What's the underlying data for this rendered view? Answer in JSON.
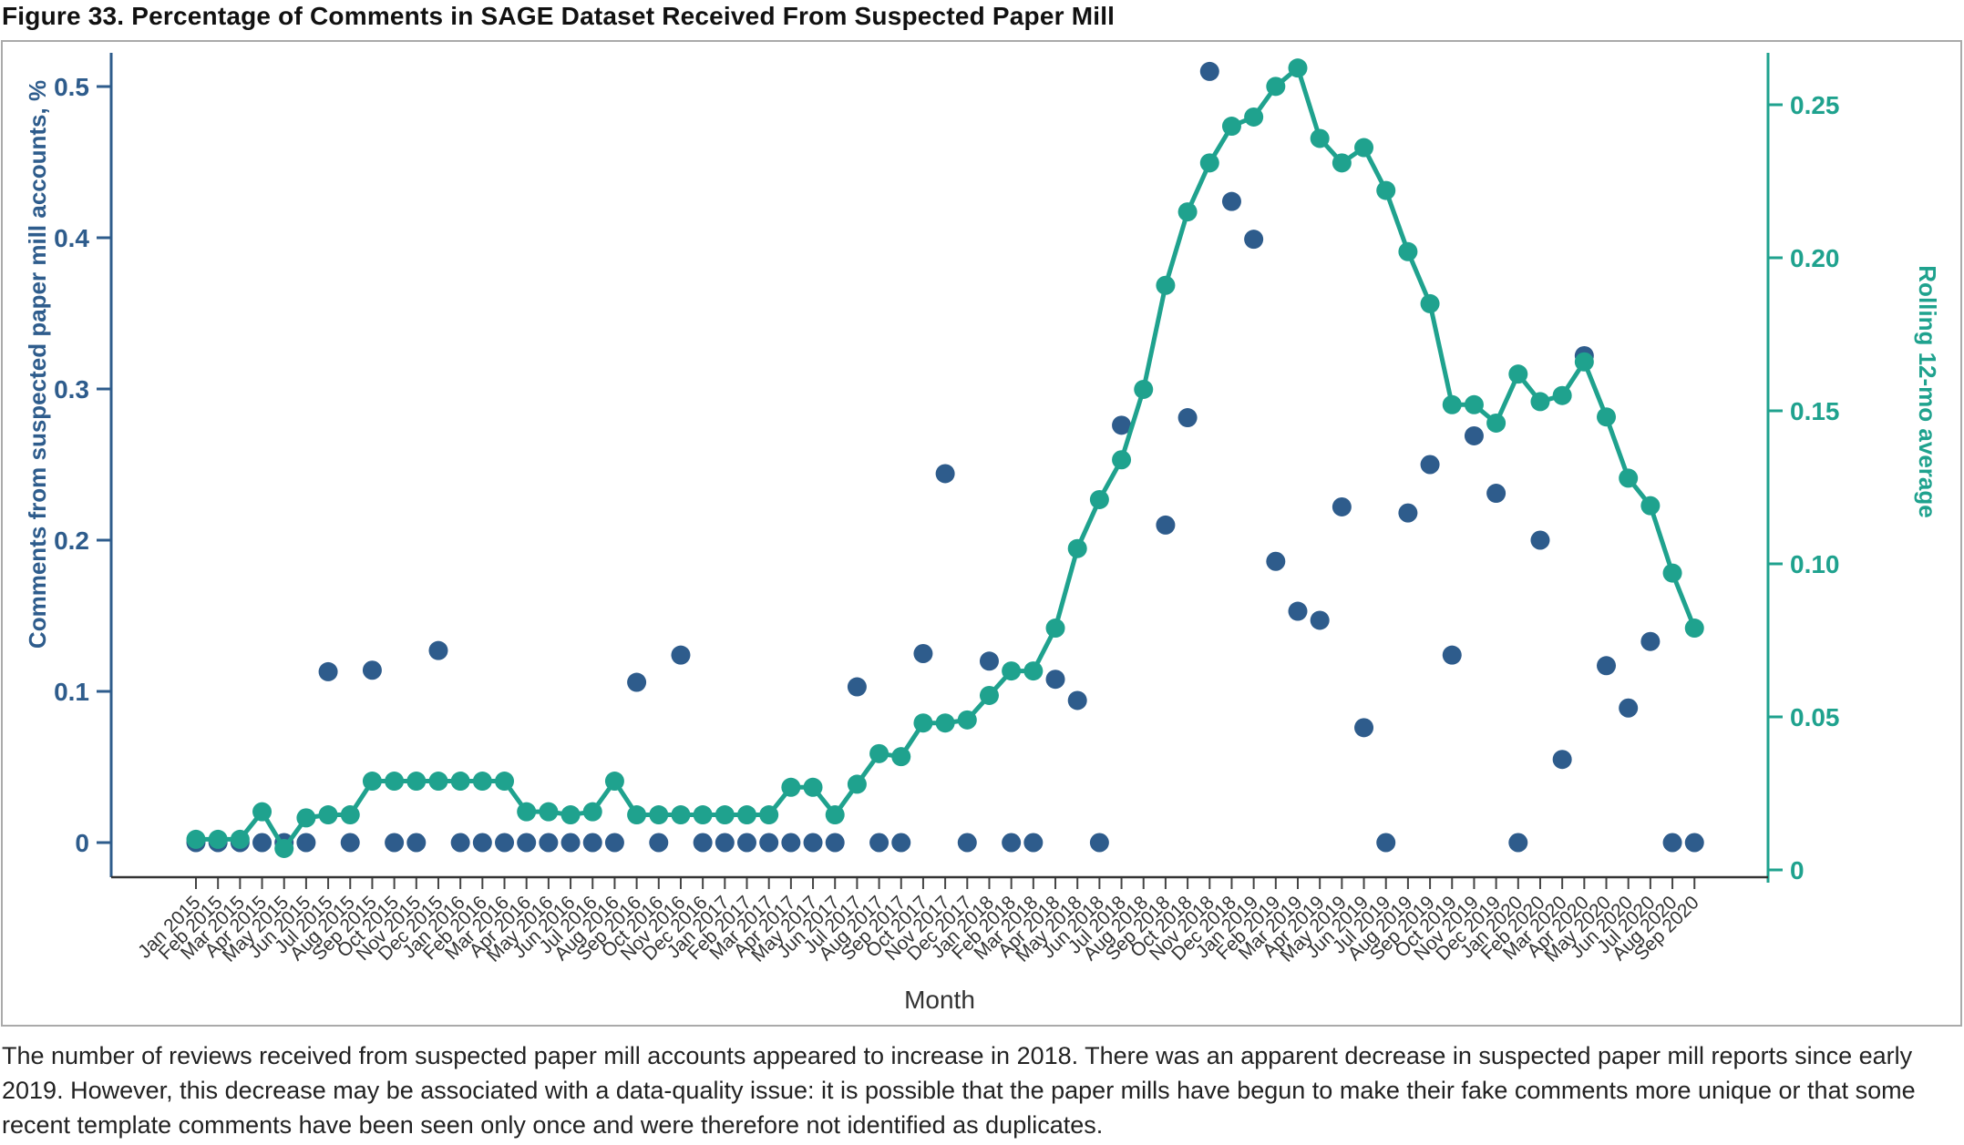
{
  "title": "Figure 33. Percentage of Comments in SAGE Dataset Received From Suspected Paper Mill",
  "caption": "The number of reviews received from suspected paper mill accounts appeared to increase in 2018. There was an apparent decrease in suspected paper mill reports since early 2019. However, this decrease may be associated with a data-quality issue: it is possible that the paper mills have begun to make their fake comments more unique or that some recent template comments have been seen only once and were therefore not identified as duplicates.",
  "colors": {
    "navy": "#2E5C8C",
    "teal": "#1FA28E",
    "border": "#AAAAAA",
    "axis_dark": "#333333",
    "x_tick_text": "#333333"
  },
  "chart_data": {
    "type": "scatter+line",
    "title": "",
    "x_label": "Month",
    "grid": false,
    "legend_position": "none",
    "categories": [
      "Jan 2015",
      "Feb 2015",
      "Mar 2015",
      "Apr 2015",
      "May 2015",
      "Jun 2015",
      "Jul 2015",
      "Aug 2015",
      "Sep 2015",
      "Oct 2015",
      "Nov 2015",
      "Dec 2015",
      "Jan 2016",
      "Feb 2016",
      "Mar 2016",
      "Apr 2016",
      "May 2016",
      "Jun 2016",
      "Jul 2016",
      "Aug 2016",
      "Sep 2016",
      "Oct 2016",
      "Nov 2016",
      "Dec 2016",
      "Jan 2017",
      "Feb 2017",
      "Mar 2017",
      "Apr 2017",
      "May 2017",
      "Jun 2017",
      "Jul 2017",
      "Aug 2017",
      "Sep 2017",
      "Oct 2017",
      "Nov 2017",
      "Dec 2017",
      "Jan 2018",
      "Feb 2018",
      "Mar 2018",
      "Apr 2018",
      "May 2018",
      "Jun 2018",
      "Jul 2018",
      "Aug 2018",
      "Sep 2018",
      "Oct 2018",
      "Nov 2018",
      "Dec 2018",
      "Jan 2019",
      "Feb 2019",
      "Mar 2019",
      "Apr 2019",
      "May 2019",
      "Jun 2019",
      "Jul 2019",
      "Aug 2019",
      "Sep 2019",
      "Oct 2019",
      "Nov 2019",
      "Dec 2019",
      "Jan 2020",
      "Feb 2020",
      "Mar 2020",
      "Apr 2020",
      "May 2020",
      "Jun 2020",
      "Jul 2020",
      "Aug 2020",
      "Sep 2020"
    ],
    "series": [
      {
        "name": "Comments from suspected paper mill accounts, %",
        "type": "scatter",
        "axis": "left",
        "color": "#2E5C8C",
        "values": [
          0,
          0,
          0,
          0,
          0,
          0,
          0.113,
          0,
          0.114,
          0,
          0,
          0.127,
          0,
          0,
          0,
          0,
          0,
          0,
          0,
          0,
          0.106,
          0,
          0.124,
          0,
          0,
          0,
          0,
          0,
          0,
          0,
          0.103,
          0,
          0,
          0.125,
          0.244,
          0,
          0.12,
          0,
          0,
          0.108,
          0.094,
          0,
          0.276,
          null,
          0.21,
          0.281,
          0.51,
          0.424,
          0.399,
          0.186,
          0.153,
          0.147,
          0.222,
          0.076,
          0,
          0.218,
          0.25,
          0.124,
          0.269,
          0.231,
          0,
          0.2,
          0.055,
          0.322,
          0.117,
          0.089,
          0.133,
          0,
          0
        ]
      },
      {
        "name": "Rolling 12-mo average",
        "type": "line",
        "axis": "right",
        "color": "#1FA28E",
        "values": [
          0.01,
          0.01,
          0.01,
          0.019,
          0.007,
          0.017,
          0.018,
          0.018,
          0.029,
          0.029,
          0.029,
          0.029,
          0.029,
          0.029,
          0.029,
          0.019,
          0.019,
          0.018,
          0.019,
          0.029,
          0.018,
          0.018,
          0.018,
          0.018,
          0.018,
          0.018,
          0.018,
          0.027,
          0.027,
          0.018,
          0.028,
          0.038,
          0.037,
          0.048,
          0.048,
          0.049,
          0.057,
          0.065,
          0.065,
          0.079,
          0.105,
          0.121,
          0.134,
          0.157,
          0.191,
          0.215,
          0.231,
          0.243,
          0.246,
          0.256,
          0.262,
          0.239,
          0.231,
          0.236,
          0.222,
          0.202,
          0.185,
          0.152,
          0.152,
          0.146,
          0.162,
          0.153,
          0.155,
          0.166,
          0.148,
          0.128,
          0.119,
          0.097,
          0.079
        ]
      }
    ],
    "left_axis": {
      "label": "Comments from suspected paper mill accounts, %",
      "tick_labels": [
        "0",
        "0.1",
        "0.2",
        "0.3",
        "0.4",
        "0.5"
      ],
      "tick_values": [
        0,
        0.1,
        0.2,
        0.3,
        0.4,
        0.5
      ],
      "range": [
        0,
        0.5
      ]
    },
    "right_axis": {
      "label": "Rolling 12-mo average",
      "tick_labels": [
        "0",
        "0.05",
        "0.10",
        "0.15",
        "0.20",
        "0.25"
      ],
      "tick_values": [
        0,
        0.05,
        0.1,
        0.15,
        0.2,
        0.25
      ],
      "range": [
        0,
        0.25
      ]
    }
  }
}
